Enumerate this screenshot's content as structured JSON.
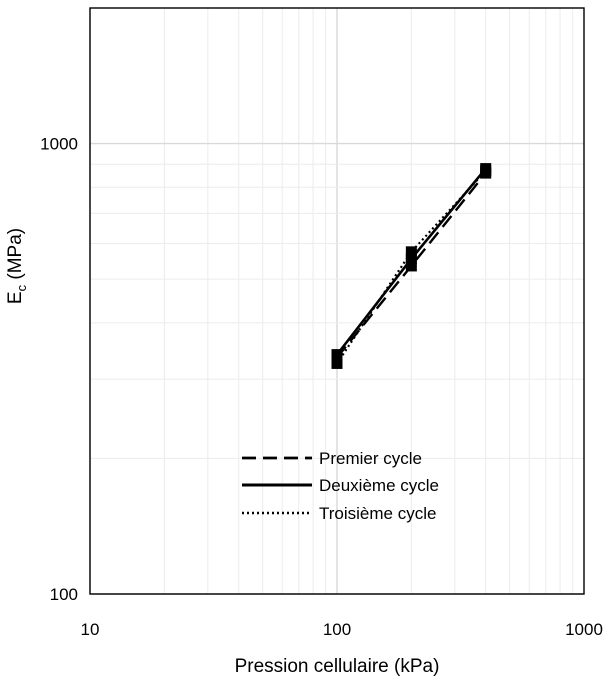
{
  "chart_data": {
    "type": "line",
    "title": "",
    "xlabel": "Pression cellulaire (kPa)",
    "ylabel": {
      "main": "E",
      "sub": "c",
      "suffix": " (MPa)"
    },
    "x_scale": "log",
    "y_scale": "log",
    "xlim": [
      10,
      1000
    ],
    "ylim": [
      100,
      2000
    ],
    "x_ticks": [
      {
        "value": 10,
        "label": "10"
      },
      {
        "value": 100,
        "label": "100"
      },
      {
        "value": 1000,
        "label": "1000"
      }
    ],
    "y_ticks": [
      {
        "value": 100,
        "label": "100"
      },
      {
        "value": 1000,
        "label": "1000"
      }
    ],
    "grid": "major and minor",
    "legend_position": "lower-center",
    "series": [
      {
        "name": "Premier cycle",
        "style": "dashed",
        "x": [
          100,
          200,
          400
        ],
        "y": [
          335,
          535,
          860
        ]
      },
      {
        "name": "Deuxième cycle",
        "style": "solid",
        "x": [
          100,
          200,
          400
        ],
        "y": [
          340,
          555,
          880
        ]
      },
      {
        "name": "Troisième cycle",
        "style": "dotted",
        "x": [
          100,
          200,
          400
        ],
        "y": [
          325,
          575,
          870
        ]
      }
    ],
    "colors": {
      "series": "#000000",
      "major_grid": "#d9d9d9",
      "minor_grid": "#ececec",
      "axis": "#000000"
    }
  }
}
